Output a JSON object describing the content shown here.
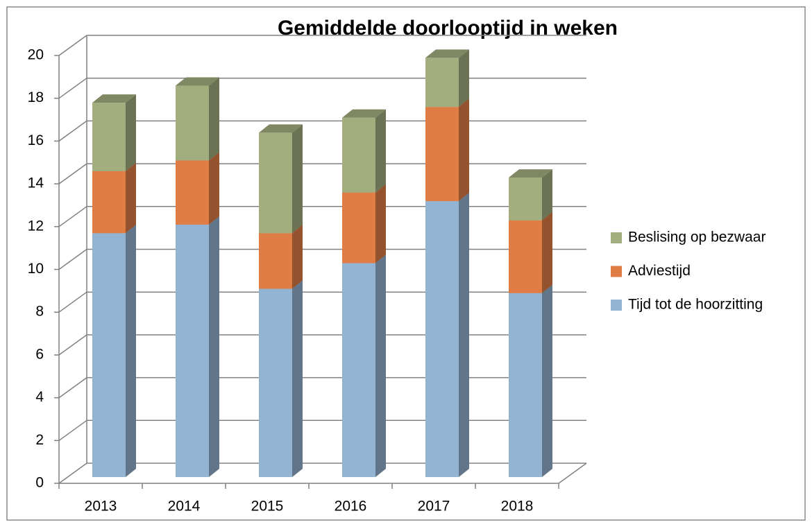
{
  "chart_data": {
    "type": "bar3d_stacked",
    "title": "Gemiddelde doorlooptijd in weken",
    "categories": [
      "2013",
      "2014",
      "2015",
      "2016",
      "2017",
      "2018"
    ],
    "series": [
      {
        "name": "Tijd tot de hoorzitting",
        "color": "#93b3d3",
        "values": [
          11.4,
          11.8,
          8.8,
          10.0,
          12.9,
          8.6
        ]
      },
      {
        "name": "Adviestijd",
        "color": "#e07d45",
        "values": [
          2.9,
          3.0,
          2.6,
          3.3,
          4.4,
          3.4
        ]
      },
      {
        "name": "Beslising op bezwaar",
        "color": "#a3ae7f",
        "values": [
          3.2,
          3.5,
          4.7,
          3.5,
          2.3,
          2.0
        ]
      }
    ],
    "ylim": [
      0,
      20
    ],
    "yticks": [
      0,
      2,
      4,
      6,
      8,
      10,
      12,
      14,
      16,
      18,
      20
    ],
    "grid": true,
    "legend": "right"
  }
}
